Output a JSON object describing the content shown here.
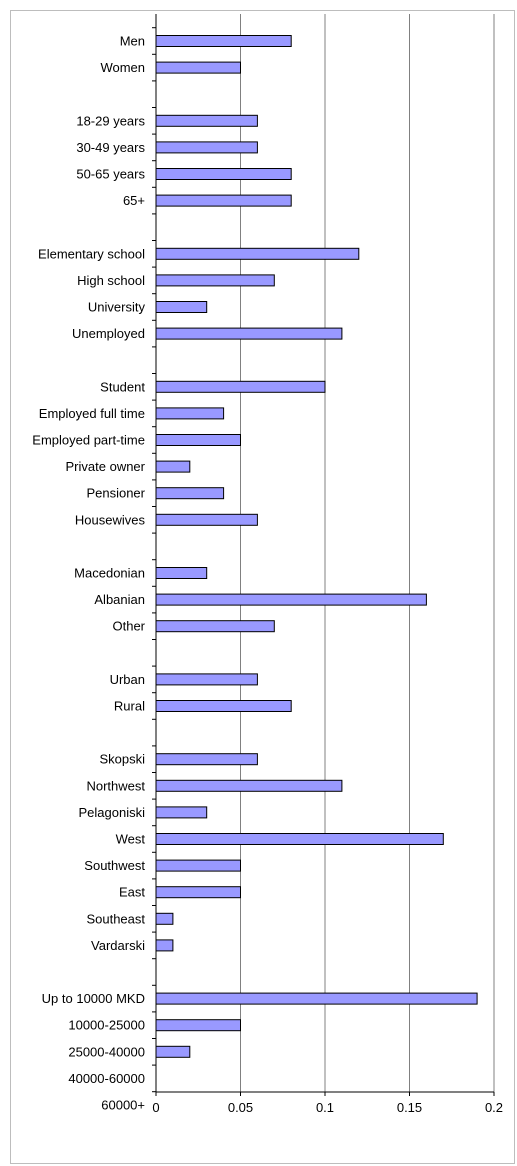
{
  "chart_data": {
    "type": "bar",
    "orientation": "horizontal",
    "title": "",
    "xlabel": "",
    "ylabel": "",
    "xlim": [
      0,
      0.2
    ],
    "x_ticks": [
      0,
      0.05,
      0.1,
      0.15,
      0.2
    ],
    "x_tick_labels": [
      "0",
      "0.05",
      "0.1",
      "0.15",
      "0.2"
    ],
    "grid": "vertical",
    "legend": "none",
    "bar_color": "#9999ff",
    "bar_edge_color": "#000000",
    "grid_color": "#808080",
    "categories": [
      "Men",
      "Women",
      "",
      "18-29 years",
      "30-49 years",
      "50-65 years",
      "65+",
      "",
      "Elementary school",
      "High school",
      "University",
      "Unemployed",
      "",
      "Student",
      "Employed full time",
      "Employed part-time",
      "Private owner",
      "Pensioner",
      "Housewives",
      "",
      "Macedonian",
      "Albanian",
      "Other",
      "",
      "Urban",
      "Rural",
      "",
      "Skopski",
      "Northwest",
      "Pelagoniski",
      "West",
      "Southwest",
      "East",
      "Southeast",
      "Vardarski",
      "",
      "Up to 10000 MKD",
      "10000-25000",
      "25000-40000",
      "40000-60000",
      "60000+"
    ],
    "values": [
      0.08,
      0.05,
      null,
      0.06,
      0.06,
      0.08,
      0.08,
      null,
      0.12,
      0.07,
      0.03,
      0.11,
      null,
      0.1,
      0.04,
      0.05,
      0.02,
      0.04,
      0.06,
      null,
      0.03,
      0.16,
      0.07,
      null,
      0.06,
      0.08,
      null,
      0.06,
      0.11,
      0.03,
      0.17,
      0.05,
      0.05,
      0.01,
      0.01,
      null,
      0.19,
      0.05,
      0.02,
      0,
      0
    ]
  }
}
